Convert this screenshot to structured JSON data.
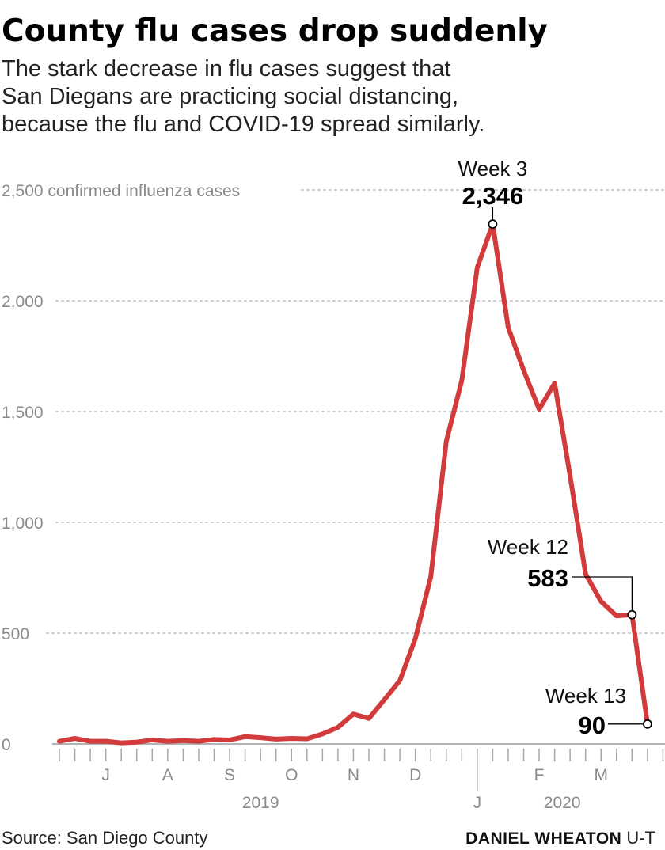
{
  "title": "County flu cases drop suddenly",
  "subtitle": [
    "The stark decrease in flu cases suggest that",
    "San Diegans are practicing social distancing,",
    "because the flu and COVID-19 spread similarly."
  ],
  "source": "Source: San Diego County",
  "credit": {
    "name": "DANIEL WHEATON",
    "org": "U-T"
  },
  "chart_data": {
    "type": "line",
    "title": "County flu cases drop suddenly",
    "ylabel": "confirmed influenza cases",
    "ylim": [
      0,
      2500
    ],
    "grid": true,
    "line_color": "#d13b3b",
    "y_ticks": [
      {
        "value": 0,
        "label": "0"
      },
      {
        "value": 500,
        "label": "500"
      },
      {
        "value": 1000,
        "label": "1,000"
      },
      {
        "value": 1500,
        "label": "1,500"
      },
      {
        "value": 2000,
        "label": "2,000"
      },
      {
        "value": 2500,
        "label": "2,500 confirmed influenza cases"
      }
    ],
    "x_month_labels": [
      {
        "week_index": 3,
        "label": "J"
      },
      {
        "week_index": 7,
        "label": "A"
      },
      {
        "week_index": 11,
        "label": "S"
      },
      {
        "week_index": 15,
        "label": "O"
      },
      {
        "week_index": 19,
        "label": "N"
      },
      {
        "week_index": 23,
        "label": "D"
      },
      {
        "week_index": 27,
        "label": "J"
      },
      {
        "week_index": 31,
        "label": "F"
      },
      {
        "week_index": 35,
        "label": "M"
      }
    ],
    "x_year_labels": [
      {
        "week_index": 13,
        "label": "2019"
      },
      {
        "week_index": 33,
        "label": "2020"
      }
    ],
    "values": [
      12,
      25,
      12,
      12,
      5,
      8,
      18,
      12,
      15,
      12,
      20,
      18,
      33,
      28,
      22,
      25,
      23,
      45,
      75,
      135,
      115,
      200,
      286,
      475,
      755,
      1365,
      1640,
      2150,
      2346,
      1880,
      1686,
      1510,
      1628,
      1210,
      767,
      643,
      578,
      583,
      90
    ],
    "annotations": [
      {
        "week_index": 28,
        "label": "Week 3",
        "value_label": "2,346"
      },
      {
        "week_index": 37,
        "label": "Week 12",
        "value_label": "583"
      },
      {
        "week_index": 38,
        "label": "Week 13",
        "value_label": "90"
      }
    ]
  }
}
